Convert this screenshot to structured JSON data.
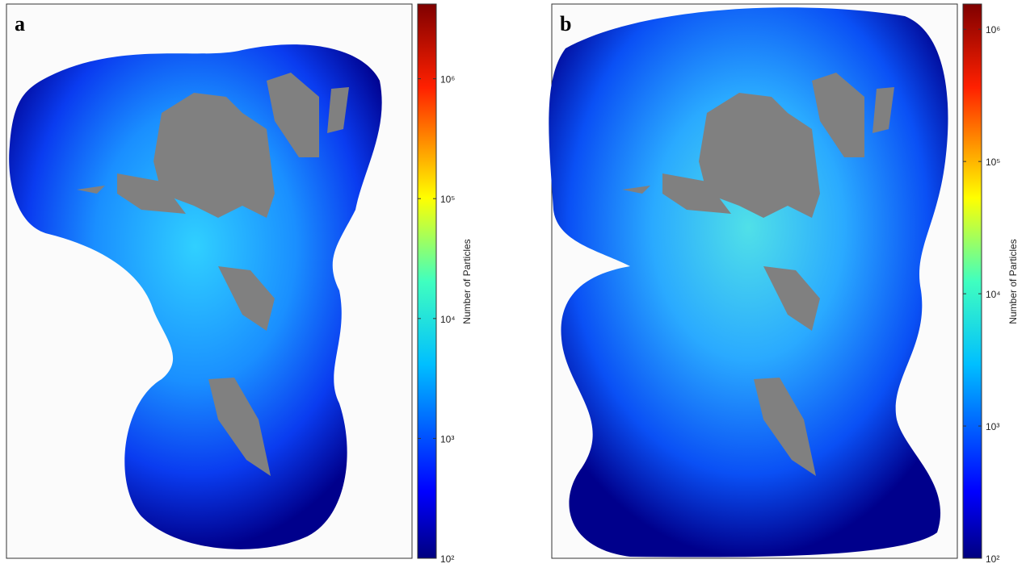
{
  "panels": [
    {
      "label": "a",
      "colorbar": {
        "label": "Number of Particles",
        "scale": "log",
        "lim": [
          100,
          4200000
        ],
        "ticks": [
          {
            "value": 100,
            "label": "10²"
          },
          {
            "value": 1000,
            "label": "10³"
          },
          {
            "value": 10000,
            "label": "10⁴"
          },
          {
            "value": 100000,
            "label": "10⁵"
          },
          {
            "value": 1000000,
            "label": "10⁶"
          }
        ]
      }
    },
    {
      "label": "b",
      "colorbar": {
        "label": "Number of Particles",
        "scale": "log",
        "lim": [
          100,
          1550000
        ],
        "ticks": [
          {
            "value": 100,
            "label": "10²"
          },
          {
            "value": 1000,
            "label": "10³"
          },
          {
            "value": 10000,
            "label": "10⁴"
          },
          {
            "value": 100000,
            "label": "10⁵"
          },
          {
            "value": 1000000,
            "label": "10⁶"
          }
        ]
      }
    }
  ]
}
